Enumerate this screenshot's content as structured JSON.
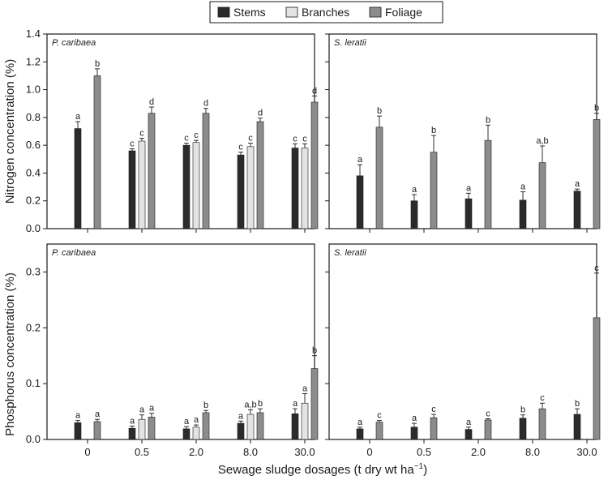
{
  "chart_data": [
    {
      "type": "bar",
      "panel_title": "P. caribaea",
      "categories": [
        "0",
        "0.5",
        "2.0",
        "8.0",
        "30.0"
      ],
      "ylabel": "Nitrogen concentration (%)",
      "ylim": [
        0,
        1.4
      ],
      "yticks": [
        "0.0",
        "0.2",
        "0.4",
        "0.6",
        "0.8",
        "1.0",
        "1.2",
        "1.4"
      ],
      "series": [
        {
          "name": "Stems",
          "color": "#2b2b2b",
          "values": [
            0.72,
            0.56,
            0.6,
            0.53,
            0.58
          ],
          "errors": [
            0.05,
            0.015,
            0.015,
            0.02,
            0.03
          ],
          "labels": [
            "a",
            "c",
            "c",
            "c",
            "c"
          ]
        },
        {
          "name": "Branches",
          "color": "#e3e3e3",
          "values": [
            null,
            0.63,
            0.62,
            0.59,
            0.58
          ],
          "errors": [
            0,
            0.02,
            0.015,
            0.025,
            0.03
          ],
          "labels": [
            "",
            "c",
            "c",
            "c",
            "c"
          ]
        },
        {
          "name": "Foliage",
          "color": "#8c8c8c",
          "values": [
            1.1,
            0.83,
            0.83,
            0.77,
            0.91
          ],
          "errors": [
            0.05,
            0.045,
            0.035,
            0.025,
            0.045
          ],
          "labels": [
            "b",
            "d",
            "d",
            "d",
            "d"
          ]
        }
      ]
    },
    {
      "type": "bar",
      "panel_title": "S. leratii",
      "categories": [
        "0",
        "0.5",
        "2.0",
        "8.0",
        "30.0"
      ],
      "ylim": [
        0,
        1.4
      ],
      "series": [
        {
          "name": "Stems",
          "color": "#2b2b2b",
          "values": [
            0.38,
            0.2,
            0.215,
            0.205,
            0.27
          ],
          "errors": [
            0.08,
            0.045,
            0.04,
            0.06,
            0.015
          ],
          "labels": [
            "a",
            "a",
            "a",
            "a",
            "a"
          ]
        },
        {
          "name": "Branches",
          "color": "#e3e3e3",
          "values": [
            null,
            null,
            null,
            null,
            null
          ],
          "errors": [
            0,
            0,
            0,
            0,
            0
          ],
          "labels": [
            "",
            "",
            "",
            "",
            ""
          ]
        },
        {
          "name": "Foliage",
          "color": "#8c8c8c",
          "values": [
            0.73,
            0.55,
            0.635,
            0.475,
            0.785
          ],
          "errors": [
            0.08,
            0.12,
            0.11,
            0.12,
            0.045
          ],
          "labels": [
            "b",
            "b",
            "b",
            "a,b",
            "b"
          ]
        }
      ]
    },
    {
      "type": "bar",
      "panel_title": "P. caribaea",
      "categories": [
        "0",
        "0.5",
        "2.0",
        "8.0",
        "30.0"
      ],
      "xtick_labels": [
        "0",
        "0.5",
        "2.0",
        "8.0",
        "30.0"
      ],
      "ylabel": "Phosphorus concentration (%)",
      "ylim": [
        0,
        0.35
      ],
      "yticks": [
        "0.0",
        "0.1",
        "0.2",
        "0.3"
      ],
      "series": [
        {
          "name": "Stems",
          "color": "#2b2b2b",
          "values": [
            0.03,
            0.02,
            0.019,
            0.029,
            0.046
          ],
          "errors": [
            0.004,
            0.004,
            0.004,
            0.004,
            0.009
          ],
          "labels": [
            "a",
            "a",
            "a",
            "a",
            "a"
          ]
        },
        {
          "name": "Branches",
          "color": "#e3e3e3",
          "values": [
            null,
            0.036,
            0.022,
            0.045,
            0.065
          ],
          "errors": [
            0,
            0.008,
            0.004,
            0.008,
            0.017
          ],
          "labels": [
            "",
            "a",
            "a",
            "a,b",
            "a"
          ]
        },
        {
          "name": "Foliage",
          "color": "#8c8c8c",
          "values": [
            0.032,
            0.04,
            0.048,
            0.048,
            0.127
          ],
          "errors": [
            0.004,
            0.007,
            0.004,
            0.007,
            0.023
          ],
          "labels": [
            "a",
            "a",
            "b",
            "b",
            "b"
          ]
        }
      ]
    },
    {
      "type": "bar",
      "panel_title": "S. leratii",
      "categories": [
        "0",
        "0.5",
        "2.0",
        "8.0",
        "30.0"
      ],
      "xtick_labels": [
        "0",
        "0.5",
        "2.0",
        "8.0",
        "30.0"
      ],
      "ylim": [
        0,
        0.35
      ],
      "series": [
        {
          "name": "Stems",
          "color": "#2b2b2b",
          "values": [
            0.019,
            0.022,
            0.018,
            0.038,
            0.045
          ],
          "errors": [
            0.003,
            0.007,
            0.004,
            0.006,
            0.01
          ],
          "labels": [
            "a",
            "a",
            "a",
            "b",
            "b"
          ]
        },
        {
          "name": "Branches",
          "color": "#e3e3e3",
          "values": [
            null,
            null,
            null,
            null,
            null
          ],
          "errors": [
            0,
            0,
            0,
            0,
            0
          ],
          "labels": [
            "",
            "",
            "",
            "",
            ""
          ]
        },
        {
          "name": "Foliage",
          "color": "#8c8c8c",
          "values": [
            0.031,
            0.039,
            0.035,
            0.055,
            0.218
          ],
          "errors": [
            0.003,
            0.006,
            0.002,
            0.01,
            0.08
          ],
          "labels": [
            "c",
            "c",
            "c",
            "c",
            "c"
          ]
        }
      ]
    }
  ],
  "legend": {
    "placement": "top-center",
    "items": [
      {
        "label": "Stems",
        "color": "#2b2b2b"
      },
      {
        "label": "Branches",
        "color": "#e3e3e3"
      },
      {
        "label": "Foliage",
        "color": "#8c8c8c"
      }
    ]
  },
  "xlabel": "Sewage sludge dosages (t dry wt ha",
  "xlabel_superscript": "−1",
  "xlabel_suffix": ")"
}
